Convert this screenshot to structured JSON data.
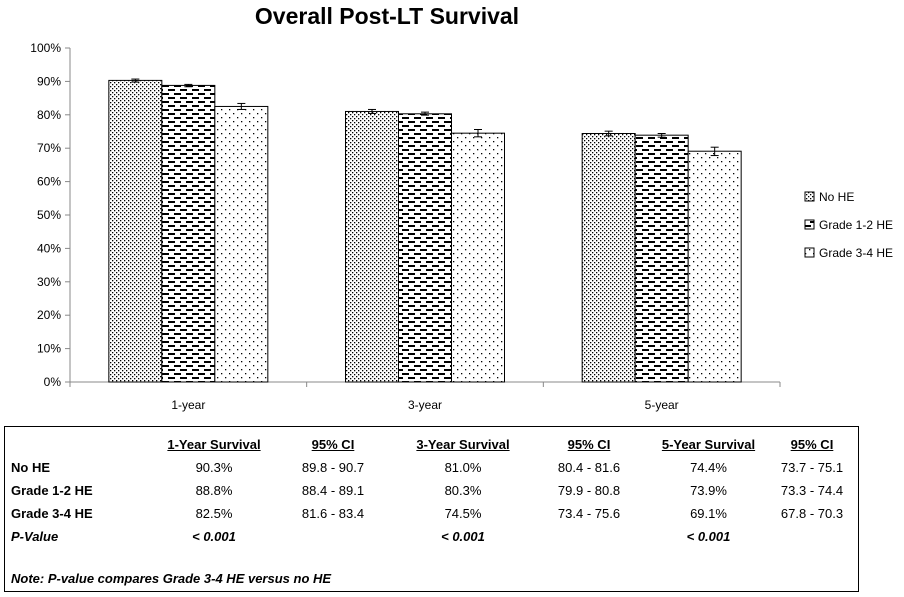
{
  "chart_data": {
    "type": "bar",
    "title": "Overall Post-LT Survival",
    "categories": [
      "1-year",
      "3-year",
      "5-year"
    ],
    "ylim": [
      0,
      100
    ],
    "yticks": [
      "0%",
      "10%",
      "20%",
      "30%",
      "40%",
      "50%",
      "60%",
      "70%",
      "80%",
      "90%",
      "100%"
    ],
    "grid": false,
    "legend_position": "right",
    "error_bars": true,
    "series": [
      {
        "name": "No HE",
        "values": [
          90.3,
          81.0,
          74.4
        ],
        "ci_low": [
          89.8,
          80.4,
          73.7
        ],
        "ci_high": [
          90.7,
          81.6,
          75.1
        ],
        "pattern": "fine-dots"
      },
      {
        "name": "Grade 1-2 HE",
        "values": [
          88.8,
          80.3,
          73.9
        ],
        "ci_low": [
          88.4,
          79.9,
          73.3
        ],
        "ci_high": [
          89.1,
          80.8,
          74.4
        ],
        "pattern": "dashes"
      },
      {
        "name": "Grade 3-4 HE",
        "values": [
          82.5,
          74.5,
          69.1
        ],
        "ci_low": [
          81.6,
          73.4,
          67.8
        ],
        "ci_high": [
          83.4,
          75.6,
          70.3
        ],
        "pattern": "sparse-dots"
      }
    ]
  },
  "table": {
    "headers": [
      "1-Year Survival",
      "95% CI",
      "3-Year Survival",
      "95% CI",
      "5-Year Survival",
      "95% CI"
    ],
    "rows": [
      {
        "label": "No HE",
        "cells": [
          "90.3%",
          "89.8 - 90.7",
          "81.0%",
          "80.4 - 81.6",
          "74.4%",
          "73.7 - 75.1"
        ]
      },
      {
        "label": "Grade 1-2 HE",
        "cells": [
          "88.8%",
          "88.4 - 89.1",
          "80.3%",
          "79.9 - 80.8",
          "73.9%",
          "73.3 - 74.4"
        ]
      },
      {
        "label": "Grade 3-4 HE",
        "cells": [
          "82.5%",
          "81.6 - 83.4",
          "74.5%",
          "73.4 - 75.6",
          "69.1%",
          "67.8 - 70.3"
        ]
      }
    ],
    "pvalue_label": "P-Value",
    "pvalues": [
      "< 0.001",
      "< 0.001",
      "< 0.001"
    ],
    "note": "Note: P-value compares Grade 3-4 HE versus  no HE"
  }
}
